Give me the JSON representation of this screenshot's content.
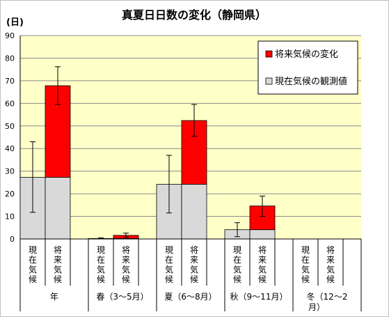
{
  "chart_data": {
    "type": "bar",
    "stacked": true,
    "title": "真夏日日数の変化（静岡県）",
    "ylabel": "(日)",
    "xlabel": "",
    "ylim": [
      0,
      90
    ],
    "yticks": [
      0,
      10,
      20,
      30,
      40,
      50,
      60,
      70,
      80,
      90
    ],
    "grid": true,
    "legend": "top-right",
    "groups": [
      "年",
      "春（3～5月）",
      "夏（6～8月）",
      "秋（9～11月）",
      "冬（12～2月）"
    ],
    "bar_labels": [
      "現在気候",
      "将来気候"
    ],
    "series": [
      {
        "name": "現在気候の観測値",
        "color": "#d9d9d9",
        "values": [
          [
            27.3,
            27.3
          ],
          [
            0.2,
            0.2
          ],
          [
            24.2,
            24.2
          ],
          [
            4.1,
            4.1
          ],
          [
            0,
            0
          ]
        ]
      },
      {
        "name": "将来気候の変化",
        "color": "#ff0000",
        "values": [
          [
            0,
            40.5
          ],
          [
            0,
            1.4
          ],
          [
            0,
            28.2
          ],
          [
            0,
            10.5
          ],
          [
            0,
            0
          ]
        ]
      }
    ],
    "error_bars": [
      [
        [
          11.8,
          43.0
        ],
        [
          59.5,
          76.2
        ]
      ],
      [
        [
          0.0,
          0.5
        ],
        [
          0.8,
          2.6
        ]
      ],
      [
        [
          11.5,
          37.0
        ],
        [
          45.5,
          59.5
        ]
      ],
      [
        [
          1.0,
          7.2
        ],
        [
          10.0,
          19.0
        ]
      ],
      [
        null,
        null
      ]
    ]
  }
}
